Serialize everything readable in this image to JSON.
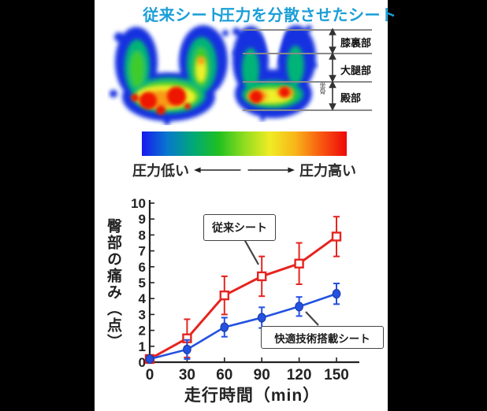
{
  "panel": {
    "headers": {
      "left": "従来シート",
      "right": "圧力を分散させたシート",
      "color": "#1b9ed8"
    },
    "heatmap_annotations": {
      "regions": [
        {
          "label": "膝裏部"
        },
        {
          "label": "大腿部"
        },
        {
          "label": "殿部"
        }
      ],
      "note": "坐骨"
    },
    "colorbar": {
      "label_low": "圧力低い",
      "label_high": "圧力高い",
      "gradient": [
        "#1818f0",
        "#0878cc",
        "#00a878",
        "#20c020",
        "#90dc20",
        "#f0ec24",
        "#f8b418",
        "#f85810",
        "#ee0808"
      ]
    }
  },
  "chart_data": {
    "type": "line",
    "x": [
      0,
      30,
      60,
      90,
      120,
      150
    ],
    "xticks": [
      0,
      30,
      60,
      90,
      120,
      150
    ],
    "yticks": [
      0,
      1,
      2,
      3,
      4,
      5,
      6,
      7,
      8,
      9,
      10
    ],
    "ylim": [
      0,
      10
    ],
    "xlabel": "走行時間（min）",
    "ylabel": "臀部の痛み（点）",
    "title": "",
    "grid": false,
    "series": [
      {
        "name": "従来シート",
        "color": "#e62420",
        "marker": "open-square",
        "values": [
          0.2,
          1.5,
          4.2,
          5.4,
          6.2,
          7.9
        ],
        "errors": [
          0,
          1.2,
          1.2,
          1.25,
          1.3,
          1.25
        ]
      },
      {
        "name": "快適技術搭載シート",
        "color": "#2451e0",
        "marker": "filled-circle",
        "values": [
          0.2,
          0.8,
          2.2,
          2.8,
          3.5,
          4.3
        ],
        "errors": [
          0,
          0.6,
          0.6,
          0.65,
          0.6,
          0.65
        ]
      }
    ]
  }
}
